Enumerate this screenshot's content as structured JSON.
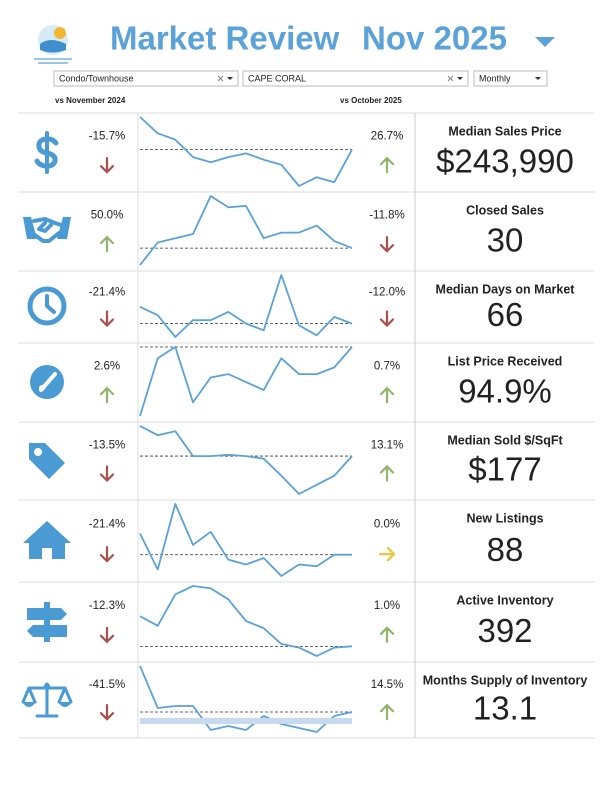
{
  "header": {
    "title": "Market Review",
    "period": "Nov 2025"
  },
  "filters": {
    "property_type": "Condo/Townhouse",
    "location": "CAPE CORAL",
    "frequency": "Monthly"
  },
  "comparisons": {
    "year": "vs November 2024",
    "month": "vs October 2025"
  },
  "metrics": [
    {
      "name": "Median Sales Price",
      "value": "$243,990",
      "yoy": "-15.7%",
      "yoy_direction": "down",
      "mom": "26.7%",
      "mom_direction": "up",
      "trend": [
        68,
        55,
        50,
        36,
        32,
        36,
        39,
        34,
        30,
        13,
        20,
        16,
        42
      ],
      "reference": 42
    },
    {
      "name": "Closed Sales",
      "value": "30",
      "yoy": "50.0%",
      "yoy_direction": "up",
      "mom": "-11.8%",
      "mom_direction": "down",
      "trend": [
        19,
        35,
        38,
        41,
        68,
        60,
        61,
        38,
        42,
        42,
        47,
        36,
        31
      ],
      "reference": 31
    },
    {
      "name": "Median Days on Market",
      "value": "66",
      "yoy": "-21.4%",
      "yoy_direction": "down",
      "mom": "-12.0%",
      "mom_direction": "down",
      "trend": [
        34,
        29,
        16,
        26,
        26,
        31,
        24,
        20,
        53,
        23,
        17,
        28,
        24
      ],
      "reference": 24
    },
    {
      "name": "List Price Received",
      "value": "94.9%",
      "yoy": "2.6%",
      "yoy_direction": "up",
      "mom": "0.7%",
      "mom_direction": "up",
      "trend": [
        6,
        57,
        67,
        18,
        40,
        43,
        36,
        29,
        57,
        43,
        43,
        49,
        67
      ],
      "reference": 67
    },
    {
      "name": "Median Sold $/SqFt",
      "value": "$177",
      "yoy": "-13.5%",
      "yoy_direction": "down",
      "mom": "13.1%",
      "mom_direction": "up",
      "trend": [
        58,
        51,
        54,
        35,
        35,
        36,
        35,
        33,
        20,
        6,
        13,
        20,
        35
      ],
      "reference": 35
    },
    {
      "name": "New Listings",
      "value": "88",
      "yoy": "-21.4%",
      "yoy_direction": "down",
      "mom": "0.0%",
      "mom_direction": "flat",
      "trend": [
        32,
        10,
        50,
        25,
        33,
        16,
        13,
        17,
        6,
        13,
        12,
        19,
        19
      ],
      "reference": 19
    },
    {
      "name": "Active Inventory",
      "value": "392",
      "yoy": "-12.3%",
      "yoy_direction": "down",
      "mom": "1.0%",
      "mom_direction": "up",
      "trend": [
        37,
        29,
        55,
        62,
        60,
        51,
        33,
        27,
        14,
        11,
        4,
        11,
        12
      ],
      "reference": 12
    },
    {
      "name": "Months Supply of Inventory",
      "value": "13.1",
      "yoy": "-41.5%",
      "yoy_direction": "down",
      "mom": "14.5%",
      "mom_direction": "up",
      "trend": [
        40,
        19,
        20,
        20,
        8,
        10,
        8,
        15,
        11,
        9,
        7,
        15,
        17
      ],
      "reference": 17
    }
  ]
}
